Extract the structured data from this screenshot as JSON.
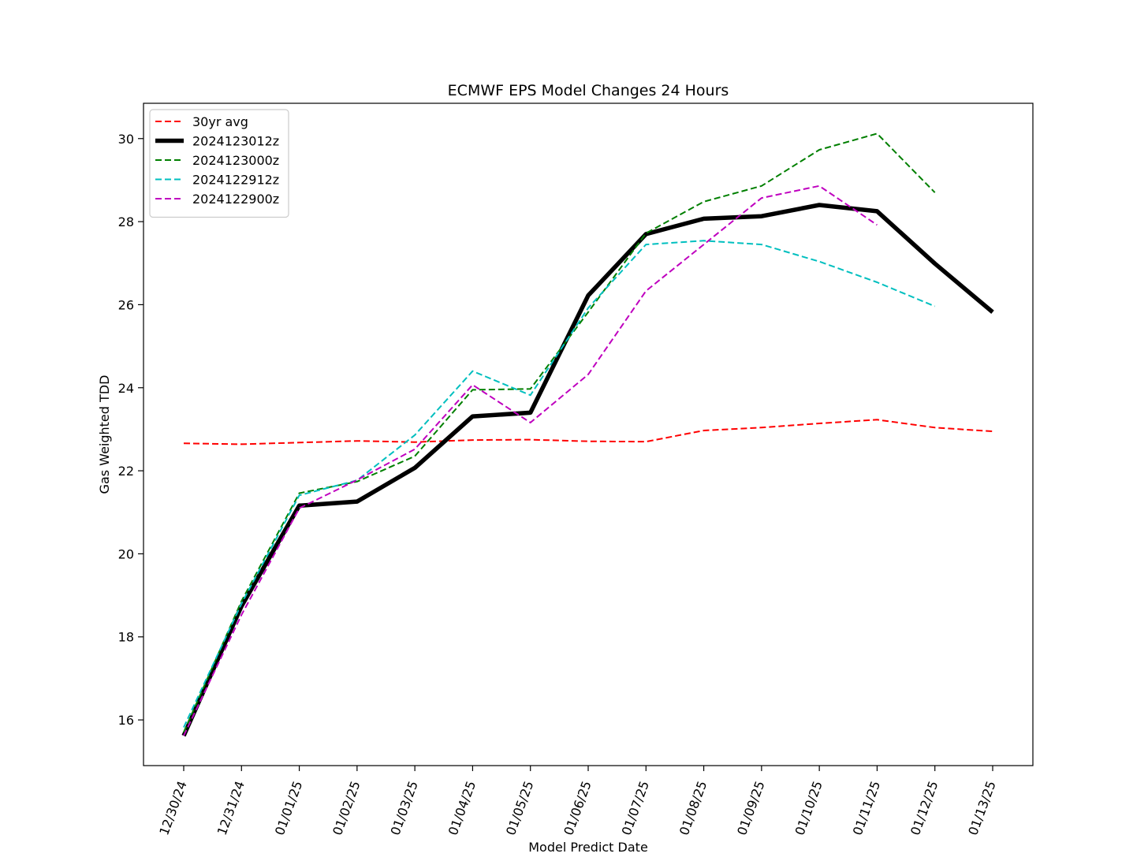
{
  "chart_data": {
    "type": "line",
    "title": "ECMWF EPS Model Changes 24 Hours",
    "xlabel": "Model Predict Date",
    "ylabel": "Gas Weighted TDD",
    "x": [
      "12/30/24",
      "12/31/24",
      "01/01/25",
      "01/02/25",
      "01/03/25",
      "01/04/25",
      "01/05/25",
      "01/06/25",
      "01/07/25",
      "01/08/25",
      "01/09/25",
      "01/10/25",
      "01/11/25",
      "01/12/25",
      "01/13/25"
    ],
    "yticks": [
      16,
      18,
      20,
      22,
      24,
      26,
      28,
      30
    ],
    "ylim": [
      14.9,
      30.85
    ],
    "grid": false,
    "legend_position": "top-left",
    "series": [
      {
        "name": "30yr avg",
        "color": "#ff0000",
        "style": "dashed",
        "width": "normal",
        "values": [
          22.66,
          22.64,
          22.68,
          22.72,
          22.69,
          22.74,
          22.75,
          22.71,
          22.7,
          22.97,
          23.04,
          23.14,
          23.23,
          23.04,
          22.95
        ]
      },
      {
        "name": "2024123012z",
        "color": "#000000",
        "style": "solid",
        "width": "thick",
        "values": [
          15.62,
          18.74,
          21.16,
          21.26,
          22.07,
          23.31,
          23.4,
          26.22,
          27.7,
          28.07,
          28.13,
          28.4,
          28.25,
          26.99,
          25.82
        ]
      },
      {
        "name": "2024123000z",
        "color": "#007f00",
        "style": "dashed",
        "width": "normal",
        "values": [
          15.7,
          18.86,
          21.46,
          21.74,
          22.35,
          23.95,
          23.97,
          25.82,
          27.72,
          28.48,
          28.86,
          29.73,
          30.12,
          28.7,
          null
        ]
      },
      {
        "name": "2024122912z",
        "color": "#00bfbf",
        "style": "dashed",
        "width": "normal",
        "values": [
          15.82,
          18.8,
          21.41,
          21.77,
          22.86,
          24.4,
          23.82,
          25.92,
          27.45,
          27.54,
          27.45,
          27.04,
          26.54,
          25.96,
          null
        ]
      },
      {
        "name": "2024122900z",
        "color": "#bf00bf",
        "style": "dashed",
        "width": "normal",
        "values": [
          15.62,
          18.53,
          21.1,
          21.78,
          22.52,
          24.07,
          23.16,
          24.32,
          26.33,
          27.45,
          28.57,
          28.86,
          27.92,
          null,
          null
        ]
      }
    ]
  }
}
